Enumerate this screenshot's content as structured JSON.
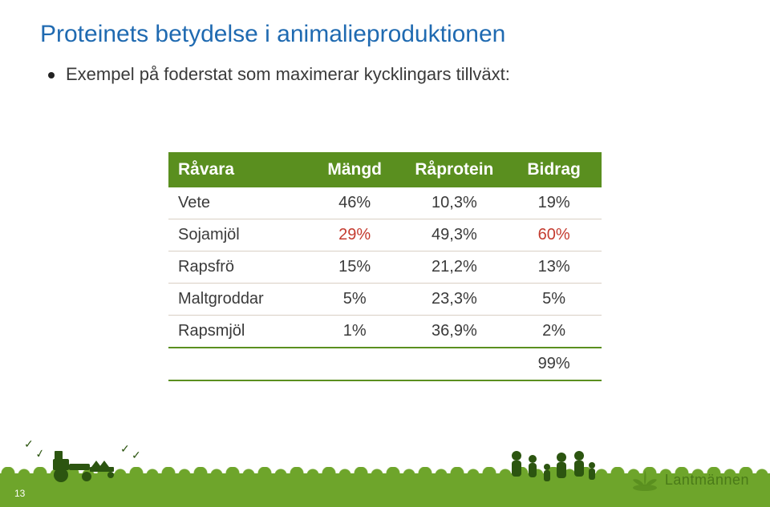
{
  "title": {
    "text": "Proteinets betydelse i animalieproduktionen",
    "color": "#1f6ab1",
    "fontsize": 30
  },
  "bullet": {
    "text": "Exempel på foderstat som maximerar kycklingars tillväxt:",
    "color": "#3a3a3a",
    "fontsize": 22
  },
  "table": {
    "header_bg": "#5a8f1f",
    "header_fg": "#ffffff",
    "body_text_color": "#3a3a3a",
    "highlight_color": "#c43b2f",
    "row_border_color": "#d9cfc4",
    "total_border_color": "#5a8f1f",
    "header_fontsize": 21,
    "body_fontsize": 20,
    "columns": [
      "Råvara",
      "Mängd",
      "Råprotein",
      "Bidrag"
    ],
    "col_widths": [
      "32%",
      "22%",
      "24%",
      "22%"
    ],
    "rows": [
      {
        "cells": [
          "Vete",
          "46%",
          "10,3%",
          "19%"
        ],
        "highlight": false
      },
      {
        "cells": [
          "Sojamjöl",
          "29%",
          "49,3%",
          "60%"
        ],
        "highlight": true
      },
      {
        "cells": [
          "Rapsfrö",
          "15%",
          "21,2%",
          "13%"
        ],
        "highlight": false
      },
      {
        "cells": [
          "Maltgroddar",
          "5%",
          "23,3%",
          "5%"
        ],
        "highlight": false
      },
      {
        "cells": [
          "Rapsmjöl",
          "1%",
          "36,9%",
          "2%"
        ],
        "highlight": false
      }
    ],
    "total": {
      "label": "",
      "value": "99%"
    }
  },
  "footer": {
    "grass_color": "#6ea52b",
    "silhouette_color": "#2c5510",
    "page_number": "13",
    "logo_text": "Lantmännen",
    "logo_color": "#4a7a18"
  }
}
